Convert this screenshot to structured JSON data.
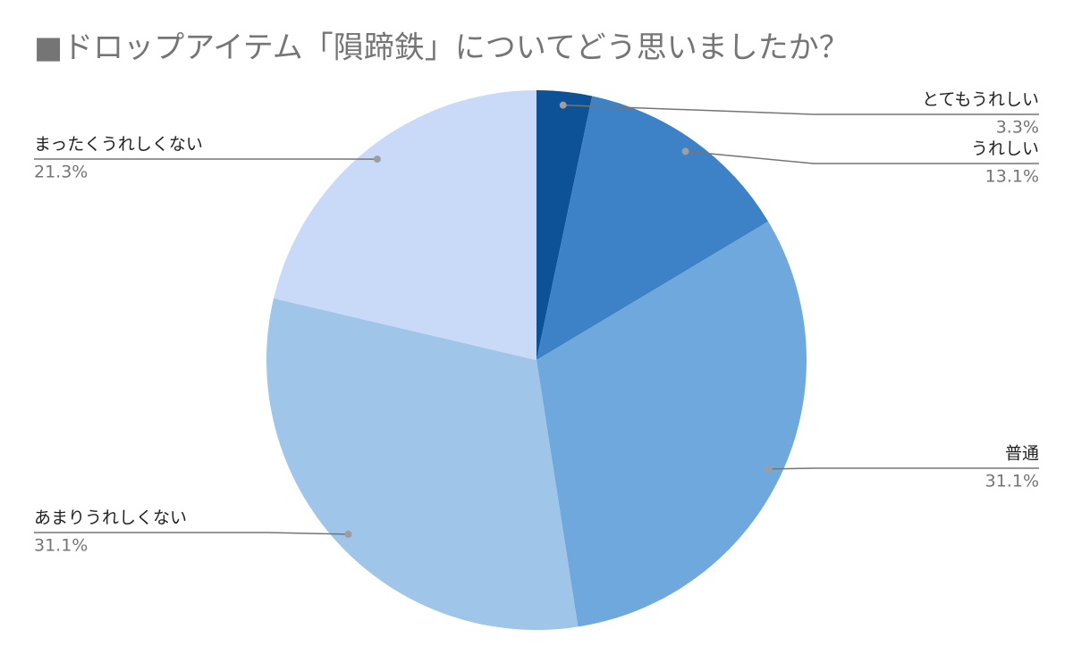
{
  "chart_data": {
    "type": "pie",
    "title": "■ドロップアイテム「隕蹄鉄」についてどう思いましたか？",
    "categories": [
      "とてもうれしい",
      "うれしい",
      "普通",
      "あまりうれしくない",
      "まったくうれしくない"
    ],
    "values": [
      3.3,
      13.1,
      31.1,
      31.1,
      21.3
    ],
    "value_labels": [
      "3.3%",
      "13.1%",
      "31.1%",
      "31.1%",
      "21.3%"
    ],
    "colors": [
      "#0d5196",
      "#3d82c6",
      "#6fa8dc",
      "#9fc5e8",
      "#c9daf8"
    ]
  }
}
